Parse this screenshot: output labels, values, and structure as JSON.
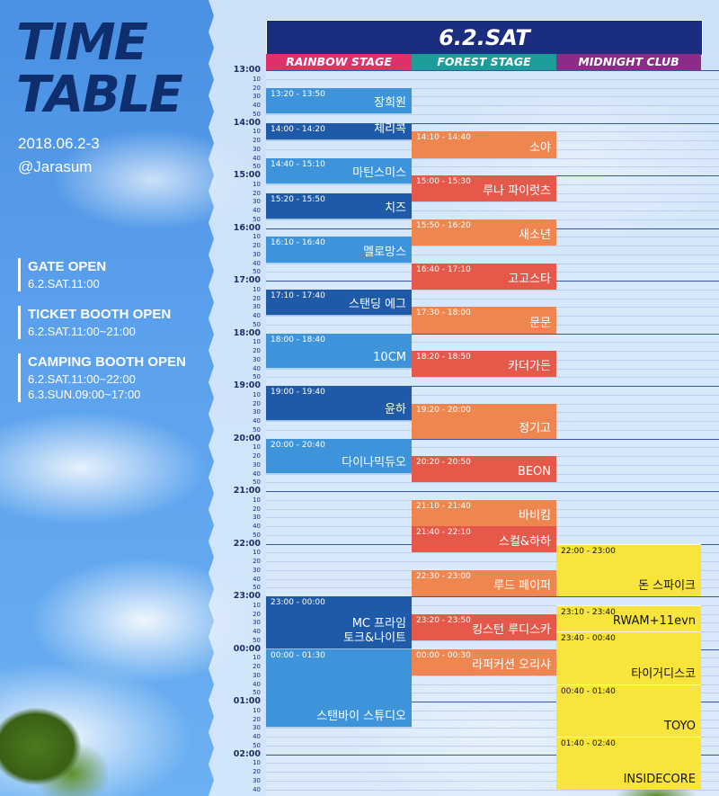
{
  "title_line1": "TIME",
  "title_line2": "TABLE",
  "dates": "2018.06.2-3",
  "venue": "@Jarasum",
  "info": [
    {
      "heading": "GATE OPEN",
      "lines": [
        "6.2.SAT.11:00"
      ]
    },
    {
      "heading": "TICKET BOOTH OPEN",
      "lines": [
        "6.2.SAT.11:00~21:00"
      ]
    },
    {
      "heading": "CAMPING BOOTH OPEN",
      "lines": [
        "6.2.SAT.11:00~22:00",
        "6.3.SUN.09:00~17:00"
      ]
    }
  ],
  "day_label": "6.2.SAT",
  "stages": [
    {
      "name": "RAINBOW STAGE",
      "color": "#e0306a"
    },
    {
      "name": "FOREST STAGE",
      "color": "#1e9c9a"
    },
    {
      "name": "MIDNIGHT CLUB",
      "color": "#8a2c88"
    }
  ],
  "hours": [
    "13:00",
    "14:00",
    "15:00",
    "16:00",
    "17:00",
    "18:00",
    "19:00",
    "20:00",
    "21:00",
    "22:00",
    "23:00",
    "00:00",
    "01:00",
    "02:00"
  ],
  "minute_ticks": [
    "10",
    "20",
    "30",
    "40",
    "50"
  ],
  "colors": {
    "rainbow_light": "#3d94db",
    "rainbow_dark": "#1f5aa8",
    "forest_orange": "#ef8650",
    "forest_red": "#e6584a",
    "midnight_yellow": "#f8e43a",
    "day_bg": "#1b2d7e",
    "title": "#0f2e6e"
  },
  "events": [
    {
      "stage": 0,
      "time": "13:20 - 13:50",
      "name": "장희원",
      "start": 20,
      "end": 50,
      "tone": "light"
    },
    {
      "stage": 0,
      "time": "14:00 - 14:20",
      "name": "체리콕",
      "start": 60,
      "end": 80,
      "tone": "dark"
    },
    {
      "stage": 0,
      "time": "14:40 - 15:10",
      "name": "마틴스미스",
      "start": 100,
      "end": 130,
      "tone": "light"
    },
    {
      "stage": 0,
      "time": "15:20 - 15:50",
      "name": "치즈",
      "start": 140,
      "end": 170,
      "tone": "dark"
    },
    {
      "stage": 0,
      "time": "16:10 - 16:40",
      "name": "멜로망스",
      "start": 190,
      "end": 220,
      "tone": "light"
    },
    {
      "stage": 0,
      "time": "17:10 - 17:40",
      "name": "스탠딩 에그",
      "start": 250,
      "end": 280,
      "tone": "dark"
    },
    {
      "stage": 0,
      "time": "18:00 - 18:40",
      "name": "10CM",
      "start": 300,
      "end": 340,
      "tone": "light"
    },
    {
      "stage": 0,
      "time": "19:00 - 19:40",
      "name": "윤하",
      "start": 360,
      "end": 400,
      "tone": "dark"
    },
    {
      "stage": 0,
      "time": "20:00 - 20:40",
      "name": "다이나믹듀오",
      "start": 420,
      "end": 460,
      "tone": "light"
    },
    {
      "stage": 0,
      "time": "23:00 - 00:00",
      "name": "MC 프라임\n토크&나이트",
      "start": 600,
      "end": 660,
      "tone": "dark"
    },
    {
      "stage": 0,
      "time": "00:00 - 01:30",
      "name": "스탠바이 스튜디오",
      "start": 660,
      "end": 750,
      "tone": "light"
    },
    {
      "stage": 1,
      "time": "14:10 - 14:40",
      "name": "소야",
      "start": 70,
      "end": 100,
      "tone": "orange"
    },
    {
      "stage": 1,
      "time": "15:00 - 15:30",
      "name": "루나 파이럿츠",
      "start": 120,
      "end": 150,
      "tone": "red"
    },
    {
      "stage": 1,
      "time": "15:50 - 16:20",
      "name": "새소년",
      "start": 170,
      "end": 200,
      "tone": "orange"
    },
    {
      "stage": 1,
      "time": "16:40 - 17:10",
      "name": "고고스타",
      "start": 220,
      "end": 250,
      "tone": "red"
    },
    {
      "stage": 1,
      "time": "17:30 - 18:00",
      "name": "문문",
      "start": 270,
      "end": 300,
      "tone": "orange"
    },
    {
      "stage": 1,
      "time": "18:20 - 18:50",
      "name": "카더가든",
      "start": 320,
      "end": 350,
      "tone": "red"
    },
    {
      "stage": 1,
      "time": "19:20 - 20:00",
      "name": "정기고",
      "start": 380,
      "end": 420,
      "tone": "orange"
    },
    {
      "stage": 1,
      "time": "20:20 - 20:50",
      "name": "BEON",
      "start": 440,
      "end": 470,
      "tone": "red"
    },
    {
      "stage": 1,
      "time": "21:10 - 21:40",
      "name": "바비킴",
      "start": 490,
      "end": 520,
      "tone": "orange"
    },
    {
      "stage": 1,
      "time": "21:40 - 22:10",
      "name": "스컬&하하",
      "start": 520,
      "end": 550,
      "tone": "red"
    },
    {
      "stage": 1,
      "time": "22:30 - 23:00",
      "name": "루드 페이퍼",
      "start": 570,
      "end": 600,
      "tone": "orange"
    },
    {
      "stage": 1,
      "time": "23:20 - 23:50",
      "name": "킹스턴 루디스카",
      "start": 620,
      "end": 650,
      "tone": "red"
    },
    {
      "stage": 1,
      "time": "00:00 - 00:30",
      "name": "라퍼커션 오리샤",
      "start": 660,
      "end": 690,
      "tone": "orange"
    },
    {
      "stage": 2,
      "time": "22:00 - 23:00",
      "name": "돈 스파이크",
      "start": 540,
      "end": 600,
      "tone": "yellow"
    },
    {
      "stage": 2,
      "time": "23:10 - 23:40",
      "name": "RWAM+11evn",
      "start": 610,
      "end": 640,
      "tone": "yellow"
    },
    {
      "stage": 2,
      "time": "23:40 - 00:40",
      "name": "타이거디스코",
      "start": 640,
      "end": 700,
      "tone": "yellow"
    },
    {
      "stage": 2,
      "time": "00:40 - 01:40",
      "name": "TOYO",
      "start": 700,
      "end": 760,
      "tone": "yellow"
    },
    {
      "stage": 2,
      "time": "01:40 - 02:40",
      "name": "INSIDECORE",
      "start": 760,
      "end": 820,
      "tone": "yellow"
    }
  ]
}
